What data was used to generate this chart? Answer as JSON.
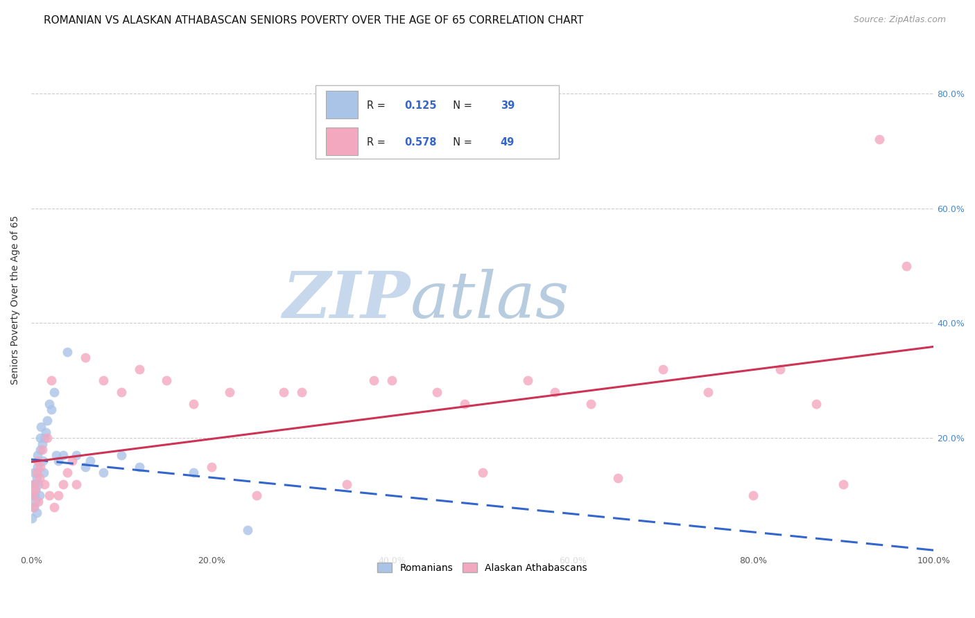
{
  "title": "ROMANIAN VS ALASKAN ATHABASCAN SENIORS POVERTY OVER THE AGE OF 65 CORRELATION CHART",
  "source": "Source: ZipAtlas.com",
  "ylabel": "Seniors Poverty Over the Age of 65",
  "background_color": "#ffffff",
  "watermark_zip": "ZIP",
  "watermark_atlas": "atlas",
  "legend_labels": [
    "Romanians",
    "Alaskan Athabascans"
  ],
  "romanian_R": "0.125",
  "romanian_N": "39",
  "athabascan_R": "0.578",
  "athabascan_N": "49",
  "romanian_color": "#aac4e8",
  "athabascan_color": "#f4a8c0",
  "romanian_line_color": "#3366cc",
  "athabascan_line_color": "#cc3355",
  "romanian_points_x": [
    0.001,
    0.002,
    0.002,
    0.003,
    0.003,
    0.004,
    0.004,
    0.005,
    0.005,
    0.006,
    0.006,
    0.007,
    0.007,
    0.008,
    0.009,
    0.01,
    0.01,
    0.011,
    0.012,
    0.013,
    0.014,
    0.015,
    0.016,
    0.018,
    0.02,
    0.022,
    0.025,
    0.028,
    0.03,
    0.035,
    0.04,
    0.05,
    0.06,
    0.065,
    0.08,
    0.1,
    0.12,
    0.18,
    0.24
  ],
  "romanian_points_y": [
    0.06,
    0.1,
    0.12,
    0.08,
    0.14,
    0.1,
    0.12,
    0.09,
    0.11,
    0.13,
    0.07,
    0.15,
    0.17,
    0.12,
    0.1,
    0.18,
    0.2,
    0.22,
    0.19,
    0.16,
    0.14,
    0.2,
    0.21,
    0.23,
    0.26,
    0.25,
    0.28,
    0.17,
    0.16,
    0.17,
    0.35,
    0.17,
    0.15,
    0.16,
    0.14,
    0.17,
    0.15,
    0.14,
    0.04
  ],
  "athabascan_points_x": [
    0.001,
    0.002,
    0.003,
    0.005,
    0.006,
    0.007,
    0.008,
    0.009,
    0.01,
    0.012,
    0.015,
    0.018,
    0.02,
    0.022,
    0.025,
    0.03,
    0.035,
    0.04,
    0.045,
    0.05,
    0.06,
    0.08,
    0.1,
    0.12,
    0.15,
    0.18,
    0.2,
    0.22,
    0.25,
    0.28,
    0.3,
    0.35,
    0.38,
    0.4,
    0.45,
    0.48,
    0.5,
    0.55,
    0.58,
    0.62,
    0.65,
    0.7,
    0.75,
    0.8,
    0.83,
    0.87,
    0.9,
    0.94,
    0.97
  ],
  "athabascan_points_y": [
    0.1,
    0.08,
    0.12,
    0.11,
    0.14,
    0.16,
    0.09,
    0.13,
    0.15,
    0.18,
    0.12,
    0.2,
    0.1,
    0.3,
    0.08,
    0.1,
    0.12,
    0.14,
    0.16,
    0.12,
    0.34,
    0.3,
    0.28,
    0.32,
    0.3,
    0.26,
    0.15,
    0.28,
    0.1,
    0.28,
    0.28,
    0.12,
    0.3,
    0.3,
    0.28,
    0.26,
    0.14,
    0.3,
    0.28,
    0.26,
    0.13,
    0.32,
    0.28,
    0.1,
    0.32,
    0.26,
    0.12,
    0.72,
    0.5
  ],
  "xlim": [
    0,
    1.0
  ],
  "ylim": [
    0,
    0.88
  ],
  "xtick_positions": [
    0.0,
    0.2,
    0.4,
    0.6,
    0.8,
    1.0
  ],
  "xtick_labels": [
    "0.0%",
    "20.0%",
    "40.0%",
    "60.0%",
    "80.0%",
    "100.0%"
  ],
  "ytick_positions": [
    0.2,
    0.4,
    0.6,
    0.8
  ],
  "ytick_labels": [
    "20.0%",
    "40.0%",
    "60.0%",
    "80.0%"
  ],
  "grid_color": "#cccccc",
  "title_fontsize": 11,
  "axis_label_fontsize": 10,
  "tick_fontsize": 9,
  "source_fontsize": 9,
  "watermark_color": "#c8d8ec"
}
